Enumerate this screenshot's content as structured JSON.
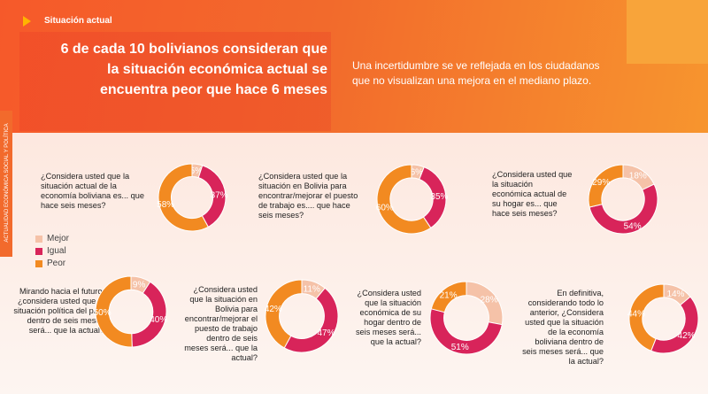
{
  "header": {
    "section_title": "Situación actual",
    "headline": "6 de cada 10 bolivianos consideran que la situación económica actual se encuentra peor que hace 6 meses",
    "subhead": "Una incertidumbre se ve reflejada en los ciudadanos que no visualizan una mejora en el mediano plazo."
  },
  "side_label": "ACTUALIDAD ECONÓMICA SOCIAL Y POLÍTICA",
  "colors": {
    "mejor": "#f5c2a8",
    "igual": "#d8245a",
    "peor": "#f28a21",
    "accent": "#f26a2c"
  },
  "legend": [
    {
      "key": "mejor",
      "label": "Mejor"
    },
    {
      "key": "igual",
      "label": "Igual"
    },
    {
      "key": "peor",
      "label": "Peor"
    }
  ],
  "chart_data": [
    {
      "type": "pie",
      "question": "¿Considera usted que la situación actual de la economía boliviana es... que hace seis meses?",
      "slices": [
        {
          "label": "Mejor",
          "value": 5,
          "text": "5%"
        },
        {
          "label": "Igual",
          "value": 37,
          "text": "37%"
        },
        {
          "label": "Peor",
          "value": 58,
          "text": "58%"
        }
      ]
    },
    {
      "type": "pie",
      "question": "¿Considera usted que la situación en Bolivia para encontrar/mejorar el puesto de trabajo es.... que hace seis meses?",
      "slices": [
        {
          "label": "Mejor",
          "value": 6,
          "text": "6%"
        },
        {
          "label": "Igual",
          "value": 35,
          "text": "35%"
        },
        {
          "label": "Peor",
          "value": 60,
          "text": "60%"
        }
      ]
    },
    {
      "type": "pie",
      "question": "¿Considera usted que la situación económica actual de su hogar es... que hace seis meses?",
      "slices": [
        {
          "label": "Mejor",
          "value": 18,
          "text": "18%"
        },
        {
          "label": "Igual",
          "value": 54,
          "text": "54%"
        },
        {
          "label": "Peor",
          "value": 29,
          "text": "29%"
        }
      ]
    },
    {
      "type": "pie",
      "question": "Mirando hacia el futuro, ¿considera usted que la situación política del país dentro de seis meses será... que la actual?",
      "slices": [
        {
          "label": "Mejor",
          "value": 9,
          "text": "9%"
        },
        {
          "label": "Igual",
          "value": 40,
          "text": "40%"
        },
        {
          "label": "Peor",
          "value": 50,
          "text": "50%"
        }
      ]
    },
    {
      "type": "pie",
      "question": "¿Considera usted que la situación en Bolivia para encontrar/mejorar el puesto de trabajo dentro de seis meses será... que la actual?",
      "slices": [
        {
          "label": "Mejor",
          "value": 11,
          "text": "11%"
        },
        {
          "label": "Igual",
          "value": 47,
          "text": "47%"
        },
        {
          "label": "Peor",
          "value": 42,
          "text": "42%"
        }
      ]
    },
    {
      "type": "pie",
      "question": "¿Considera usted que la situación económica de su hogar dentro de seis meses será... que la actual?",
      "slices": [
        {
          "label": "Mejor",
          "value": 28,
          "text": "28%"
        },
        {
          "label": "Igual",
          "value": 51,
          "text": "51%"
        },
        {
          "label": "Peor",
          "value": 21,
          "text": "21%"
        }
      ]
    },
    {
      "type": "pie",
      "question": "En definitiva, considerando todo lo anterior, ¿Considera usted que la situación de la economía boliviana dentro de seis meses será... que la actual?",
      "slices": [
        {
          "label": "Mejor",
          "value": 14,
          "text": "14%"
        },
        {
          "label": "Igual",
          "value": 42,
          "text": "42%"
        },
        {
          "label": "Peor",
          "value": 44,
          "text": "44%"
        }
      ]
    }
  ]
}
